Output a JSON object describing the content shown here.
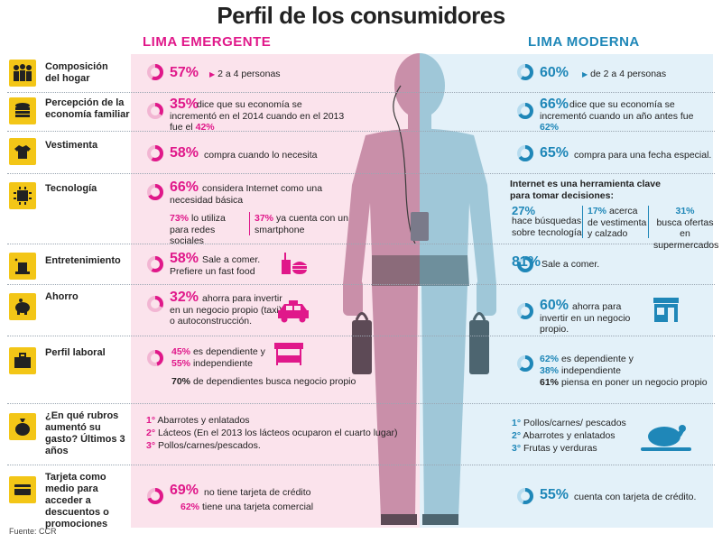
{
  "title": "Perfil de los consumidores",
  "regions": {
    "left": "LIMA EMERGENTE",
    "right": "LIMA MODERNA"
  },
  "colors": {
    "pink": "#e0188a",
    "blue": "#1f87b8",
    "yellow": "#f3c617"
  },
  "rows": {
    "hogar": {
      "label": "Composición del hogar",
      "icon": "family-icon",
      "left_pct": "57%",
      "left_text": "2 a 4 personas",
      "right_pct": "60%",
      "right_text": "de 2 a 4 personas"
    },
    "economia": {
      "label": "Percepción de la economía familiar",
      "icon": "coins-icon",
      "left_pct": "35%",
      "left_text_a": "dice que su economía se incrementó en el 2014 cuando en el 2013 fue el",
      "left_text_b": "42%",
      "right_pct": "66%",
      "right_text_a": "dice que su economía se incrementó cuando un año antes fue",
      "right_text_b": "62%"
    },
    "vestimenta": {
      "label": "Vestimenta",
      "icon": "clothes-icon",
      "left_pct": "58%",
      "left_text": "compra cuando lo necesita",
      "right_pct": "65%",
      "right_text": "compra para una fecha especial."
    },
    "tecnologia": {
      "label": "Tecnología",
      "icon": "chip-icon",
      "left_pct": "66%",
      "left_text": "considera Internet como una necesidad básica",
      "left_sub1_pct": "73%",
      "left_sub1_text": "lo utiliza para redes sociales",
      "left_sub2_pct": "37%",
      "left_sub2_text": "ya cuenta con un smartphone",
      "right_intro": "Internet es una herramienta clave para tomar decisiones:",
      "right_sub1_pct": "27%",
      "right_sub1_text": "hace búsquedas sobre tecnología",
      "right_sub2_pct": "17%",
      "right_sub2_text": "acerca de vestimenta y calzado",
      "right_sub3_pct": "31%",
      "right_sub3_text": "busca ofertas en supermercados"
    },
    "entretenimiento": {
      "label": "Entretenimiento",
      "icon": "magic-hat-icon",
      "left_pct": "58%",
      "left_text": "Sale a comer. Prefiere un fast food",
      "right_pct": "81%",
      "right_text": "Sale a comer."
    },
    "ahorro": {
      "label": "Ahorro",
      "icon": "piggy-bank-icon",
      "left_pct": "32%",
      "left_text": "ahorra para invertir en un negocio propio (taxi) o autoconstrucción.",
      "right_pct": "60%",
      "right_text": "ahorra para invertir en un negocio propio."
    },
    "laboral": {
      "label": "Perfil laboral",
      "icon": "briefcase-icon",
      "left_pct1": "45%",
      "left_text1": "es dependiente y",
      "left_pct2": "55%",
      "left_text2": "independiente",
      "left_pct3": "70%",
      "left_text3": "de dependientes busca negocio propio",
      "right_pct1": "62%",
      "right_text1": "es dependiente y",
      "right_pct2": "38%",
      "right_text2": "independiente",
      "right_pct3": "61%",
      "right_text3": "piensa en poner un negocio propio"
    },
    "rubros": {
      "label": "¿En qué rubros aumentó su gasto? Últimos 3 años",
      "icon": "money-bag-icon",
      "left": [
        {
          "rank": "1°",
          "text": "Abarrotes y enlatados"
        },
        {
          "rank": "2°",
          "text": "Lácteos (En el 2013 los lácteos ocuparon el cuarto lugar)"
        },
        {
          "rank": "3°",
          "text": "Pollos/carnes/pescados."
        }
      ],
      "right": [
        {
          "rank": "1°",
          "text": "Pollos/carnes/ pescados"
        },
        {
          "rank": "2°",
          "text": "Abarrotes y enlatados"
        },
        {
          "rank": "3°",
          "text": "Frutas y verduras"
        }
      ]
    },
    "tarjeta": {
      "label": "Tarjeta como medio para acceder a descuentos o promociones",
      "icon": "credit-card-icon",
      "left_pct": "69%",
      "left_text": "no tiene tarjeta de crédito",
      "left_pct2": "62%",
      "left_text2": "tiene una tarjeta comercial",
      "right_pct": "55%",
      "right_text": "cuenta con tarjeta de crédito."
    }
  },
  "source": "Fuente: CCR"
}
